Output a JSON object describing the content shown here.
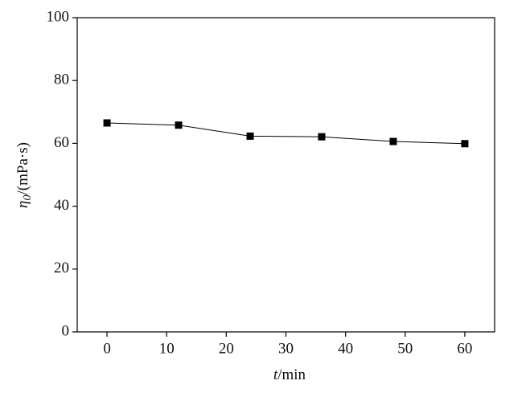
{
  "chart_data": {
    "type": "line",
    "x_label": {
      "symbol": "t",
      "unit": "/min"
    },
    "y_label": {
      "symbol": "η",
      "subscript": "0",
      "unit": "/(mPa·s)"
    },
    "x": [
      0,
      12,
      24,
      36,
      48,
      60
    ],
    "series": [
      {
        "color": "#000000",
        "marker": "square",
        "values": [
          66.5,
          65.8,
          62.3,
          62.1,
          60.6,
          59.9
        ]
      }
    ],
    "xlim": [
      -5,
      65
    ],
    "xticks": [
      0,
      10,
      20,
      30,
      40,
      50,
      60
    ],
    "ylim": [
      0,
      100
    ],
    "yticks": [
      0,
      20,
      40,
      60,
      80,
      100
    ],
    "grid": false
  }
}
